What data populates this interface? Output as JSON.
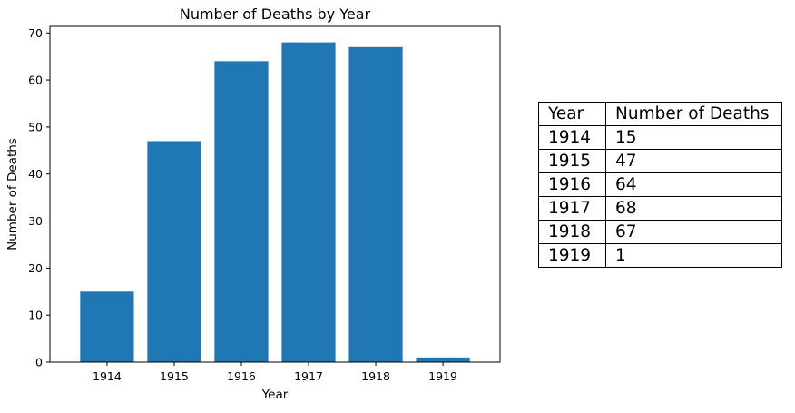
{
  "chart_data": {
    "type": "bar",
    "title": "Number of Deaths by Year",
    "xlabel": "Year",
    "ylabel": "Number of Deaths",
    "categories": [
      "1914",
      "1915",
      "1916",
      "1917",
      "1918",
      "1919"
    ],
    "values": [
      15,
      47,
      64,
      68,
      67,
      1
    ],
    "ylim": [
      0,
      71.4
    ],
    "yticks": [
      0,
      10,
      20,
      30,
      40,
      50,
      60,
      70
    ],
    "bar_color": "#1f77b4",
    "grid": false,
    "legend": "none"
  },
  "table": {
    "headers": [
      "Year",
      "Number of Deaths"
    ],
    "rows": [
      [
        "1914",
        "15"
      ],
      [
        "1915",
        "47"
      ],
      [
        "1916",
        "64"
      ],
      [
        "1917",
        "68"
      ],
      [
        "1918",
        "67"
      ],
      [
        "1919",
        "1"
      ]
    ]
  }
}
